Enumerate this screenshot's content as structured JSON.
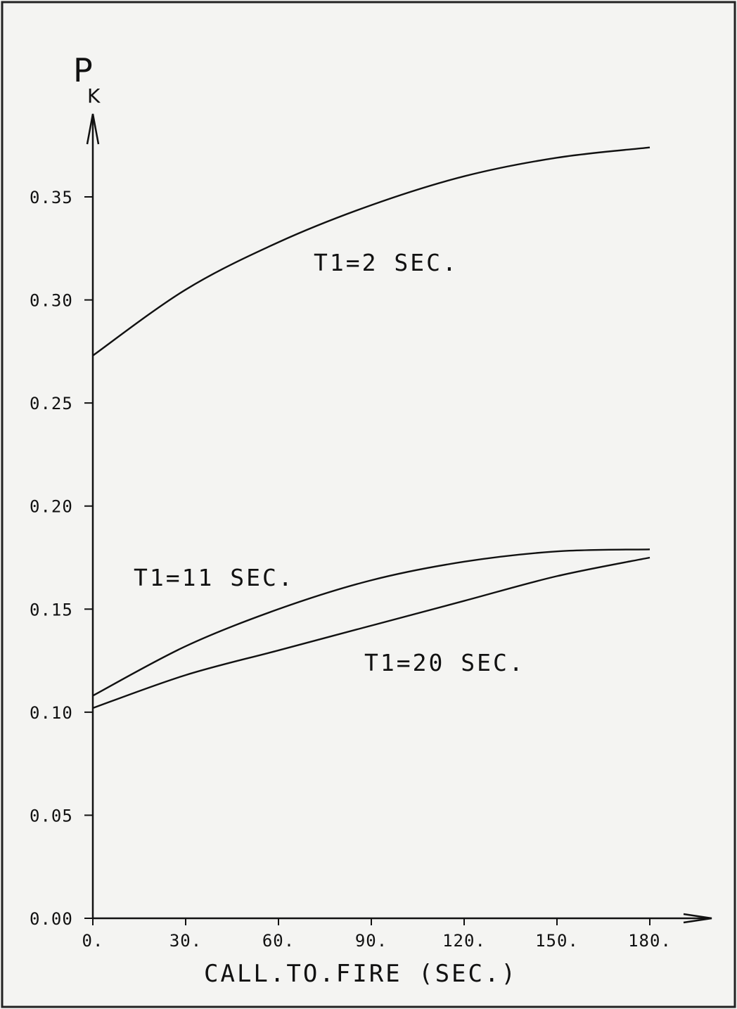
{
  "chart_data": {
    "type": "line",
    "ylabel": {
      "main": "P",
      "sub": "K"
    },
    "xlabel": "CALL.TO.FIRE (SEC.)",
    "xlim": [
      0,
      180
    ],
    "ylim": [
      0,
      0.35
    ],
    "x_ticks": [
      {
        "value": 0,
        "label": "0."
      },
      {
        "value": 30,
        "label": "30."
      },
      {
        "value": 60,
        "label": "60."
      },
      {
        "value": 90,
        "label": "90."
      },
      {
        "value": 120,
        "label": "120."
      },
      {
        "value": 150,
        "label": "150."
      },
      {
        "value": 180,
        "label": "180."
      }
    ],
    "y_ticks": [
      {
        "value": 0,
        "label": "0.00"
      },
      {
        "value": 0.05,
        "label": "0.05"
      },
      {
        "value": 0.1,
        "label": "0.10"
      },
      {
        "value": 0.15,
        "label": "0.15"
      },
      {
        "value": 0.2,
        "label": "0.20"
      },
      {
        "value": 0.25,
        "label": "0.25"
      },
      {
        "value": 0.3,
        "label": "0.30"
      },
      {
        "value": 0.35,
        "label": "0.35"
      }
    ],
    "grid": false,
    "series": [
      {
        "name": "T1=2 SEC.",
        "x": [
          0,
          30,
          60,
          90,
          120,
          150,
          180
        ],
        "y": [
          0.273,
          0.305,
          0.328,
          0.346,
          0.36,
          0.369,
          0.374
        ]
      },
      {
        "name": "T1=11 SEC.",
        "x": [
          0,
          30,
          60,
          90,
          120,
          150,
          180
        ],
        "y": [
          0.108,
          0.132,
          0.15,
          0.164,
          0.173,
          0.178,
          0.179
        ]
      },
      {
        "name": "T1=20 SEC.",
        "x": [
          0,
          30,
          60,
          90,
          120,
          150,
          180
        ],
        "y": [
          0.102,
          0.118,
          0.13,
          0.142,
          0.154,
          0.166,
          0.175
        ]
      }
    ]
  }
}
